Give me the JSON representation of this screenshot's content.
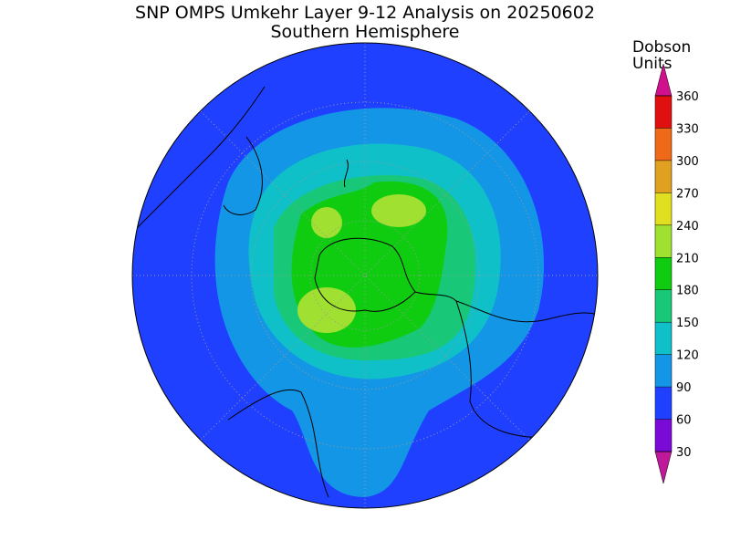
{
  "title": "SNP OMPS Umkehr Layer 9-12 Analysis on 20250602",
  "subtitle": "Southern Hemisphere",
  "colorbar": {
    "units": [
      "Dobson",
      "Units"
    ],
    "ticks": [
      30,
      60,
      90,
      120,
      150,
      180,
      210,
      240,
      270,
      300,
      330,
      360
    ],
    "colors": [
      "#c0189a",
      "#7a0ad6",
      "#2040ff",
      "#1496e6",
      "#10c0c8",
      "#18c878",
      "#10cc10",
      "#a0e030",
      "#e0e020",
      "#e0a020",
      "#ef6a18",
      "#e01010",
      "#d0108c"
    ]
  }
}
